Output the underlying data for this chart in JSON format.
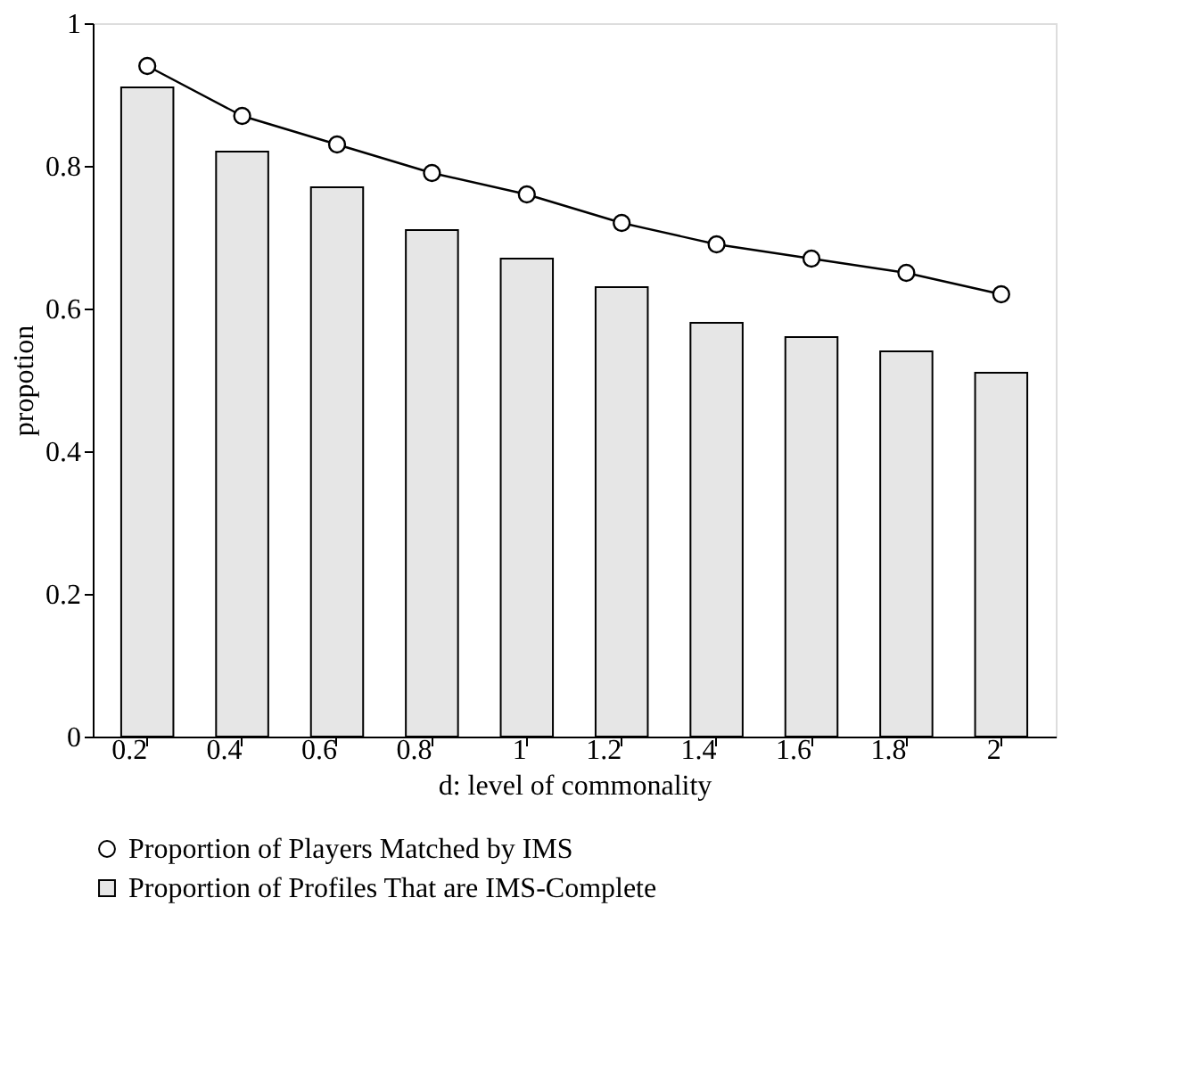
{
  "chart_data": {
    "type": "bar",
    "xlabel": "d: level of commonality",
    "ylabel": "propotion",
    "categories": [
      "0.2",
      "0.4",
      "0.6",
      "0.8",
      "1",
      "1.2",
      "1.4",
      "1.6",
      "1.8",
      "2"
    ],
    "series": [
      {
        "name": "Proportion of Players Matched by IMS",
        "type": "line",
        "color": "#000000",
        "marker": "circle",
        "line_style": "solid",
        "values": [
          0.94,
          0.87,
          0.83,
          0.79,
          0.76,
          0.72,
          0.69,
          0.67,
          0.65,
          0.62
        ]
      },
      {
        "name": "Proportion of Profiles That are IMS-Complete",
        "color": "#e6e6e6",
        "values": [
          0.91,
          0.82,
          0.77,
          0.71,
          0.67,
          0.63,
          0.58,
          0.56,
          0.54,
          0.51
        ]
      }
    ],
    "ylim": [
      0,
      1
    ],
    "yticks": [
      0,
      0.2,
      0.4,
      0.6,
      0.8,
      1
    ],
    "grid": false,
    "legend": "bottom"
  }
}
